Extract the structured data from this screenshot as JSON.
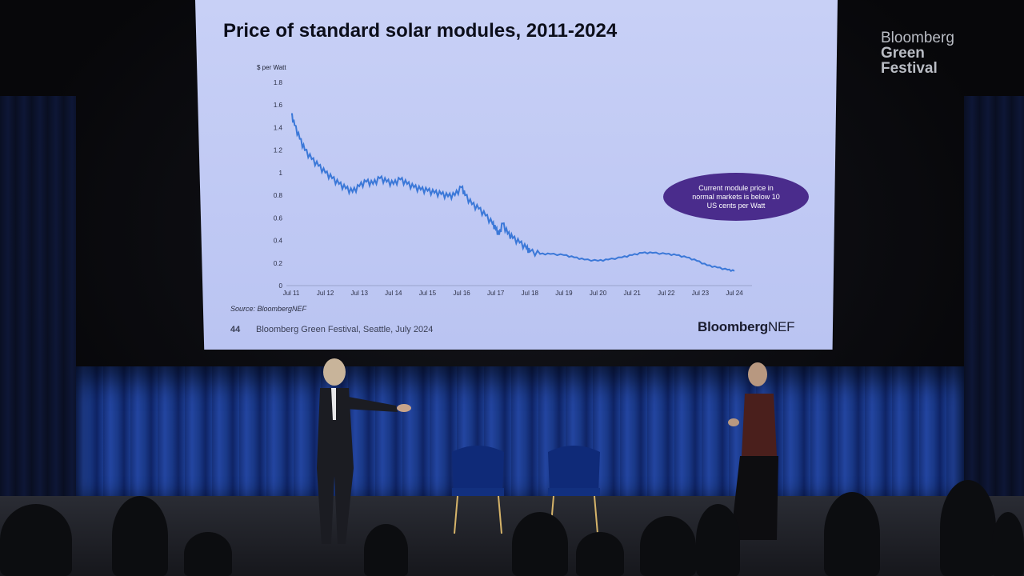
{
  "chart_data": {
    "type": "line",
    "title": "Price of standard solar modules, 2011-2024",
    "units_label": "$ per Watt",
    "ylim": [
      0,
      1.8
    ],
    "y_ticks": [
      "0",
      "0.2",
      "0.4",
      "0.6",
      "0.8",
      "1",
      "1.2",
      "1.4",
      "1.6",
      "1.8"
    ],
    "x_ticks": [
      "Jul 11",
      "Jul 12",
      "Jul 13",
      "Jul 14",
      "Jul 15",
      "Jul 16",
      "Jul 17",
      "Jul 18",
      "Jul 19",
      "Jul 20",
      "Jul 21",
      "Jul 22",
      "Jul 23",
      "Jul 24"
    ],
    "series": [
      {
        "color": "#3b78d8",
        "points": [
          [
            2011.0,
            1.52
          ],
          [
            2011.1,
            1.42
          ],
          [
            2011.25,
            1.3
          ],
          [
            2011.4,
            1.2
          ],
          [
            2011.6,
            1.12
          ],
          [
            2011.8,
            1.06
          ],
          [
            2012.0,
            1.0
          ],
          [
            2012.2,
            0.95
          ],
          [
            2012.4,
            0.9
          ],
          [
            2012.6,
            0.86
          ],
          [
            2012.8,
            0.83
          ],
          [
            2013.0,
            0.88
          ],
          [
            2013.2,
            0.92
          ],
          [
            2013.4,
            0.9
          ],
          [
            2013.6,
            0.95
          ],
          [
            2013.8,
            0.92
          ],
          [
            2014.0,
            0.9
          ],
          [
            2014.2,
            0.94
          ],
          [
            2014.4,
            0.9
          ],
          [
            2014.6,
            0.87
          ],
          [
            2014.8,
            0.85
          ],
          [
            2015.0,
            0.84
          ],
          [
            2015.2,
            0.82
          ],
          [
            2015.4,
            0.81
          ],
          [
            2015.6,
            0.79
          ],
          [
            2015.8,
            0.8
          ],
          [
            2016.0,
            0.87
          ],
          [
            2016.1,
            0.8
          ],
          [
            2016.3,
            0.72
          ],
          [
            2016.5,
            0.68
          ],
          [
            2016.7,
            0.62
          ],
          [
            2016.9,
            0.55
          ],
          [
            2017.0,
            0.5
          ],
          [
            2017.1,
            0.45
          ],
          [
            2017.2,
            0.55
          ],
          [
            2017.35,
            0.46
          ],
          [
            2017.5,
            0.42
          ],
          [
            2017.7,
            0.38
          ],
          [
            2017.9,
            0.33
          ],
          [
            2018.0,
            0.3
          ],
          [
            2018.3,
            0.28
          ],
          [
            2018.6,
            0.28
          ],
          [
            2019.0,
            0.27
          ],
          [
            2019.3,
            0.25
          ],
          [
            2019.6,
            0.23
          ],
          [
            2020.0,
            0.22
          ],
          [
            2020.3,
            0.23
          ],
          [
            2020.7,
            0.25
          ],
          [
            2021.0,
            0.27
          ],
          [
            2021.3,
            0.29
          ],
          [
            2021.6,
            0.29
          ],
          [
            2022.0,
            0.28
          ],
          [
            2022.3,
            0.27
          ],
          [
            2022.6,
            0.25
          ],
          [
            2022.9,
            0.22
          ],
          [
            2023.2,
            0.18
          ],
          [
            2023.5,
            0.16
          ],
          [
            2023.8,
            0.14
          ],
          [
            2024.0,
            0.13
          ]
        ]
      }
    ],
    "annotation": "Current module price in normal markets is below 10 US cents per Watt",
    "source": "Source: BloombergNEF"
  },
  "slide": {
    "page_number": "44",
    "footer": "Bloomberg Green Festival, Seattle, July 2024",
    "brand_bold": "Bloomberg",
    "brand_light": "NEF"
  },
  "logo": {
    "line1": "Bloomberg",
    "line2": "Green",
    "line3": "Festival"
  }
}
